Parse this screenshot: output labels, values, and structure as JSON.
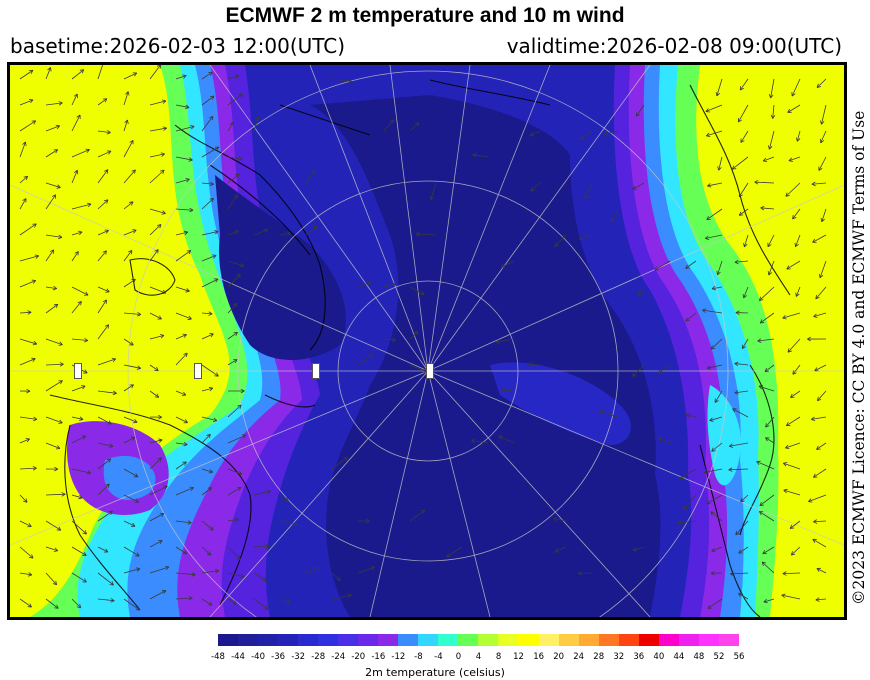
{
  "header": {
    "title": "ECMWF 2 m temperature and 10 m wind",
    "basetime": "basetime:2026-02-03 12:00(UTC)",
    "validtime": "validtime:2026-02-08 09:00(UTC)"
  },
  "licence": "©2023 ECMWF Licence: CC BY 4.0 and ECMWF Terms of Use",
  "colorbar": {
    "label": "2m temperature (celsius)",
    "ticks": [
      "-48",
      "-44",
      "-40",
      "-36",
      "-32",
      "-28",
      "-24",
      "-20",
      "-16",
      "-12",
      "-8",
      "-4",
      "0",
      "4",
      "8",
      "12",
      "16",
      "20",
      "24",
      "28",
      "32",
      "36",
      "40",
      "44",
      "48",
      "52",
      "56"
    ],
    "colors": [
      "#1a1a8c",
      "#1f1f99",
      "#2020a8",
      "#2323b8",
      "#2a2ad0",
      "#3030e0",
      "#4a2ee8",
      "#6a28e8",
      "#8a2ae8",
      "#3a8cff",
      "#33d6ff",
      "#33ffcc",
      "#66ff55",
      "#b3ff33",
      "#eaff22",
      "#ffff00",
      "#fff066",
      "#ffcc44",
      "#ffaa33",
      "#ff7722",
      "#ff4411",
      "#ee0000",
      "#ff00cc",
      "#ee22ee",
      "#ff33ff",
      "#ff44ee"
    ]
  },
  "map": {
    "colors": {
      "yellow": "#f0ff00",
      "lime": "#c6ff2a",
      "green": "#66ff55",
      "cyan": "#33e6ff",
      "blue": "#3a8cff",
      "violet": "#8a2ae8",
      "purple": "#5522dd",
      "darkblue": "#2323b8",
      "navy": "#1a1a8c"
    },
    "features": [
      "wind-arrows",
      "coastlines",
      "graticule",
      "pole-markers"
    ]
  }
}
